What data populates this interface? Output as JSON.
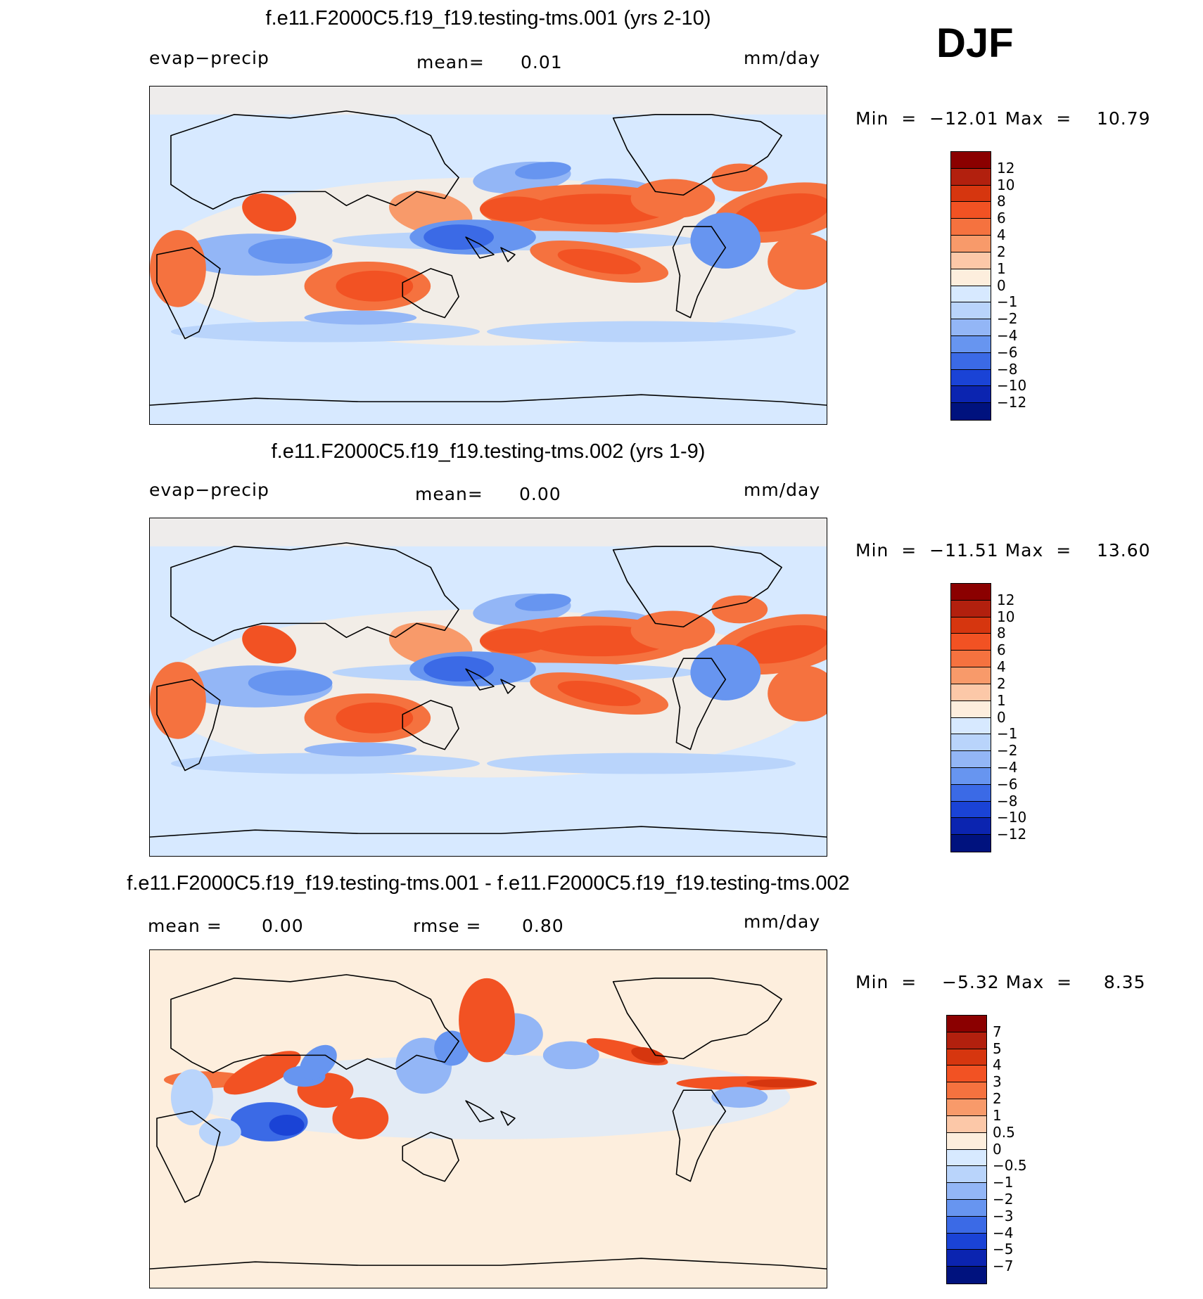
{
  "season": "DJF",
  "panels": [
    {
      "title": "f.e11.F2000C5.f19_f19.testing-tms.001 (yrs 2-10)",
      "left_label": "evap−precip",
      "center_label": "mean=",
      "center_value": "0.01",
      "units": "mm/day",
      "min_label": "Min",
      "min_value": "−12.01",
      "max_label": "Max",
      "max_value": "10.79"
    },
    {
      "title": "f.e11.F2000C5.f19_f19.testing-tms.002 (yrs 1-9)",
      "left_label": "evap−precip",
      "center_label": "mean=",
      "center_value": "0.00",
      "units": "mm/day",
      "min_label": "Min",
      "min_value": "−11.51",
      "max_label": "Max",
      "max_value": "13.60"
    },
    {
      "title": "f.e11.F2000C5.f19_f19.testing-tms.001 - f.e11.F2000C5.f19_f19.testing-tms.002",
      "left_label": "mean =",
      "left_value": "0.00",
      "center_label": "rmse =",
      "center_value": "0.80",
      "units": "mm/day",
      "min_label": "Min",
      "min_value": "−5.32",
      "max_label": "Max",
      "max_value": "8.35"
    }
  ],
  "chart_data": [
    {
      "type": "heatmap",
      "title": "f.e11.F2000C5.f19_f19.testing-tms.001 (yrs 2-10)",
      "variable": "evap−precip",
      "units": "mm/day",
      "season": "DJF",
      "mean": 0.01,
      "min": -12.01,
      "max": 10.79,
      "colorbar_levels": [
        "12",
        "10",
        "8",
        "6",
        "4",
        "2",
        "1",
        "0",
        "−1",
        "−2",
        "−4",
        "−6",
        "−8",
        "−10",
        "−12"
      ],
      "colorbar_colors": [
        "#8b0000",
        "#b2200e",
        "#d6360f",
        "#f25223",
        "#f5723f",
        "#f89a6a",
        "#fcc8a8",
        "#fdeedd",
        "#d7e9ff",
        "#b9d4fb",
        "#93b6f6",
        "#6795f0",
        "#3b6ae6",
        "#1a43d6",
        "#0b24b0",
        "#00127e"
      ]
    },
    {
      "type": "heatmap",
      "title": "f.e11.F2000C5.f19_f19.testing-tms.002 (yrs 1-9)",
      "variable": "evap−precip",
      "units": "mm/day",
      "season": "DJF",
      "mean": 0.0,
      "min": -11.51,
      "max": 13.6,
      "colorbar_levels": [
        "12",
        "10",
        "8",
        "6",
        "4",
        "2",
        "1",
        "0",
        "−1",
        "−2",
        "−4",
        "−6",
        "−8",
        "−10",
        "−12"
      ],
      "colorbar_colors": [
        "#8b0000",
        "#b2200e",
        "#d6360f",
        "#f25223",
        "#f5723f",
        "#f89a6a",
        "#fcc8a8",
        "#fdeedd",
        "#d7e9ff",
        "#b9d4fb",
        "#93b6f6",
        "#6795f0",
        "#3b6ae6",
        "#1a43d6",
        "#0b24b0",
        "#00127e"
      ]
    },
    {
      "type": "heatmap",
      "title": "f.e11.F2000C5.f19_f19.testing-tms.001 - f.e11.F2000C5.f19_f19.testing-tms.002",
      "units": "mm/day",
      "season": "DJF",
      "mean": 0.0,
      "rmse": 0.8,
      "min": -5.32,
      "max": 8.35,
      "colorbar_levels": [
        "7",
        "5",
        "4",
        "3",
        "2",
        "1",
        "0.5",
        "0",
        "−0.5",
        "−1",
        "−2",
        "−3",
        "−4",
        "−5",
        "−7"
      ],
      "colorbar_colors": [
        "#8b0000",
        "#b2200e",
        "#d6360f",
        "#f25223",
        "#f5723f",
        "#f89a6a",
        "#fcc8a8",
        "#fdeedd",
        "#d7e9ff",
        "#b9d4fb",
        "#93b6f6",
        "#6795f0",
        "#3b6ae6",
        "#1a43d6",
        "#0b24b0",
        "#00127e"
      ]
    }
  ]
}
